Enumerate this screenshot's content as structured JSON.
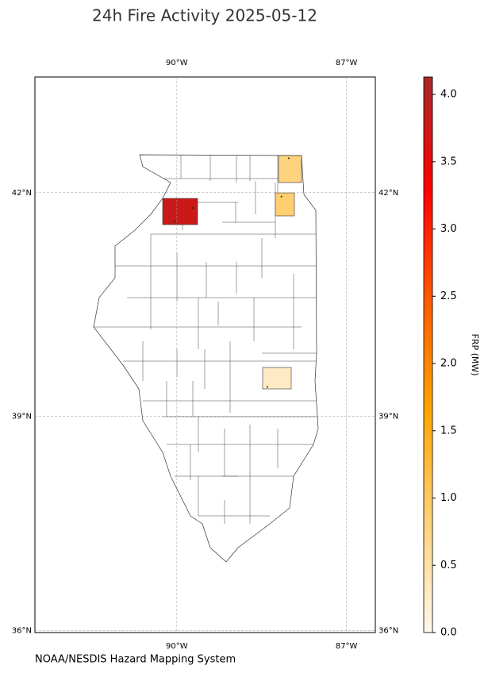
{
  "chart_data": {
    "type": "map",
    "title": "24h Fire Activity 2025-05-12",
    "source": "NOAA/NESDIS Hazard Mapping System",
    "xlim": [
      -92.51,
      -86.49
    ],
    "ylim": [
      35.97,
      43.5
    ],
    "xticks": [
      {
        "value": -90,
        "label": "90°W"
      },
      {
        "value": -87,
        "label": "87°W"
      }
    ],
    "yticks": [
      {
        "value": 42,
        "label": "42°N"
      },
      {
        "value": 39,
        "label": "39°N"
      },
      {
        "value": 36,
        "label": "36°N"
      }
    ],
    "grid": true,
    "fires": {
      "lon": [
        -89.72,
        -90.04,
        -88.02,
        -88.15,
        -88.4
      ],
      "lat": [
        41.8,
        41.62,
        42.45,
        41.95,
        39.4
      ]
    },
    "counties": {
      "frp": [
        3.8,
        0.8,
        0.9,
        0.3
      ]
    },
    "colorbar": {
      "label": "FRP (MW)",
      "clim": [
        0,
        4.13
      ],
      "ticks": [
        {
          "value": 0,
          "label": "0.0"
        },
        {
          "value": 0.5,
          "label": "0.5"
        },
        {
          "value": 1,
          "label": "1.0"
        },
        {
          "value": 1.5,
          "label": "1.5"
        },
        {
          "value": 2,
          "label": "2.0"
        },
        {
          "value": 2.5,
          "label": "2.5"
        },
        {
          "value": 3,
          "label": "3.0"
        },
        {
          "value": 3.5,
          "label": "3.5"
        },
        {
          "value": 4,
          "label": "4.0"
        }
      ],
      "colors": [
        "#fff8ec",
        "#ffd27a",
        "#ffa500",
        "#ff5a00",
        "#ff0000",
        "#a52a2a"
      ]
    }
  }
}
